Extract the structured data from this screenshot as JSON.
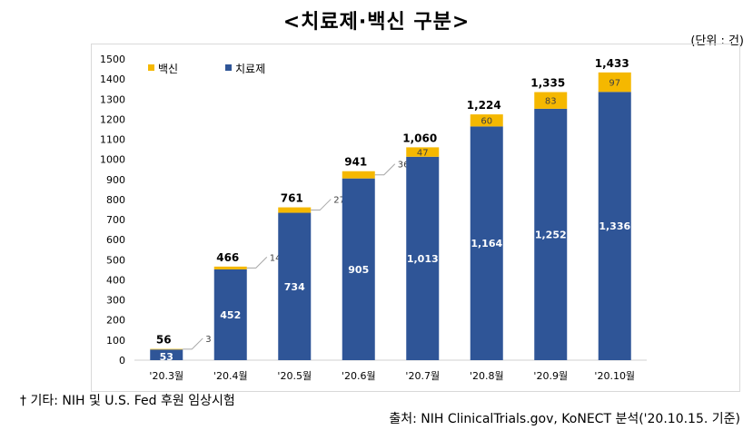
{
  "title": "<치료제·백신 구분>",
  "unit": "(단위 : 건)",
  "footnote": "† 기타: NIH 및 U.S. Fed 후원 임상시험",
  "source": "출처: NIH ClinicalTrials.gov, KoNECT 분석('20.10.15. 기준)",
  "colors": {
    "vaccine": "#f5b800",
    "treatment": "#2f5597"
  },
  "chart_data": {
    "type": "bar",
    "stacked": true,
    "title": "<치료제·백신 구분>",
    "xlabel": "",
    "ylabel": "",
    "ylim": [
      0,
      1500
    ],
    "yticks": [
      0,
      100,
      200,
      300,
      400,
      500,
      600,
      700,
      800,
      900,
      1000,
      1100,
      1200,
      1300,
      1400,
      1500
    ],
    "grid": false,
    "legend_position": "top-left",
    "categories": [
      "'20.3월",
      "'20.4월",
      "'20.5월",
      "'20.6월",
      "'20.7월",
      "'20.8월",
      "'20.9월",
      "'20.10월"
    ],
    "series": [
      {
        "name": "치료제",
        "values": [
          53,
          452,
          734,
          905,
          1013,
          1164,
          1252,
          1336
        ]
      },
      {
        "name": "백신",
        "values": [
          3,
          14,
          27,
          36,
          47,
          60,
          83,
          97
        ]
      }
    ],
    "totals": [
      56,
      466,
      761,
      941,
      1060,
      1224,
      1335,
      1433
    ],
    "value_labels": {
      "treatment": [
        "53",
        "452",
        "734",
        "905",
        "1,013",
        "1,164",
        "1,252",
        "1,336"
      ],
      "vaccine": [
        "3",
        "14",
        "27",
        "36",
        "47",
        "60",
        "83",
        "97"
      ],
      "totals": [
        "56",
        "466",
        "761",
        "941",
        "1,060",
        "1,224",
        "1,335",
        "1,433"
      ]
    },
    "legend": [
      "백신",
      "치료제"
    ]
  }
}
